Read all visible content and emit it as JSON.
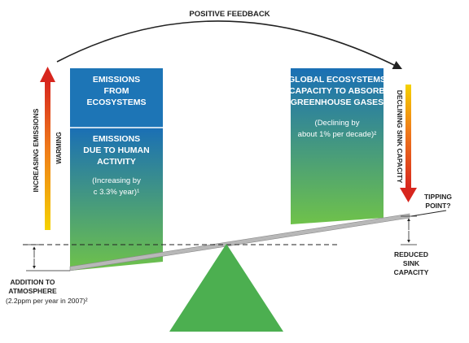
{
  "feedback_label": "POSITIVE FEEDBACK",
  "left_axis": {
    "label": "INCREASING EMISSIONS",
    "sub_label": "WARMING"
  },
  "right_axis": {
    "label": "DECLINING SINK CAPACITY"
  },
  "left_box_top": {
    "line1": "EMISSIONS",
    "line2": "FROM",
    "line3": "ECOSYSTEMS"
  },
  "left_box_bottom": {
    "line1": "EMISSIONS",
    "line2": "DUE TO HUMAN",
    "line3": "ACTIVITY",
    "note1": "(Increasing by",
    "note2": "c 3.3% year)¹"
  },
  "right_box": {
    "line1": "GLOBAL ECOSYSTEMS",
    "line2": "CAPACITY TO ABSORB",
    "line3": "GREENHOUSE GASES",
    "note1": "(Declining by",
    "note2": "about 1% per decade)²"
  },
  "tipping": {
    "line1": "TIPPING",
    "line2": "POINT?"
  },
  "reduced": {
    "line1": "REDUCED",
    "line2": "SINK",
    "line3": "CAPACITY"
  },
  "addition": {
    "line1": "ADDITION TO",
    "line2": "ATMOSPHERE",
    "line3": "(2.2ppm per year in 2007)²"
  },
  "colors": {
    "box_top": "#1a6fb5",
    "box_bottom": "#6fc24a",
    "fulcrum": "#4caf50",
    "arrow_red": "#d7261e",
    "arrow_yellow": "#f5d200"
  }
}
